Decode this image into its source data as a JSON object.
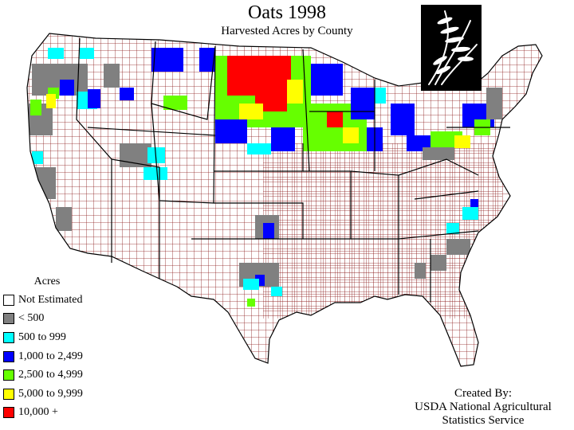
{
  "header": {
    "title": "Oats 1998",
    "subtitle": "Harvested Acres by County"
  },
  "legend": {
    "title": "Acres",
    "items": [
      {
        "label": "Not Estimated",
        "color": "#ffffff"
      },
      {
        "label": "< 500",
        "color": "#808080"
      },
      {
        "label": "500 to 999",
        "color": "#00ffff"
      },
      {
        "label": "1,000 to 2,499",
        "color": "#0000ff"
      },
      {
        "label": "2,500 to 4,999",
        "color": "#66ff00"
      },
      {
        "label": "5,000 to 9,999",
        "color": "#ffff00"
      },
      {
        "label": "10,000 +",
        "color": "#ff0000"
      }
    ]
  },
  "credit": {
    "line1": "Created By:",
    "line2": "USDA National Agricultural",
    "line3": "Statistics Service"
  },
  "colors": {
    "county_border": "#8b1a1a",
    "state_border": "#000000"
  },
  "icons": {
    "logo": "oat-plant-icon"
  }
}
